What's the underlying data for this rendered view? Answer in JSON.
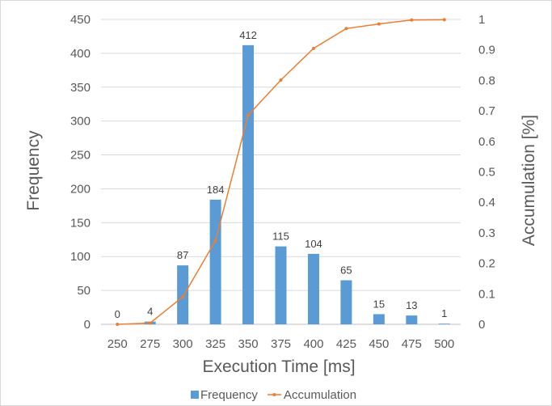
{
  "chart_data": {
    "type": "bar",
    "categories": [
      "250",
      "275",
      "300",
      "325",
      "350",
      "375",
      "400",
      "425",
      "450",
      "475",
      "500"
    ],
    "series": [
      {
        "name": "Frequency",
        "type": "bar",
        "axis": "left",
        "color": "#5b9bd5",
        "values": [
          0,
          4,
          87,
          184,
          412,
          115,
          104,
          65,
          15,
          13,
          1
        ],
        "data_labels": [
          "0",
          "4",
          "87",
          "184",
          "412",
          "115",
          "104",
          "65",
          "15",
          "13",
          "1"
        ]
      },
      {
        "name": "Accumulation",
        "type": "line",
        "axis": "right",
        "color": "#ed7d31",
        "values": [
          0,
          0.004,
          0.09,
          0.274,
          0.686,
          0.801,
          0.905,
          0.97,
          0.985,
          0.998,
          0.999
        ]
      }
    ],
    "xlabel": "Execution Time [ms]",
    "ylabel": "Frequency",
    "y2label": "Accumulation [%]",
    "ylim": [
      0,
      450
    ],
    "y2lim": [
      0,
      1
    ],
    "yticks": [
      "0",
      "50",
      "100",
      "150",
      "200",
      "250",
      "300",
      "350",
      "400",
      "450"
    ],
    "y2ticks": [
      "0",
      "0.1",
      "0.2",
      "0.3",
      "0.4",
      "0.5",
      "0.6",
      "0.7",
      "0.8",
      "0.9",
      "1"
    ],
    "grid": true,
    "legend": "bottom"
  }
}
